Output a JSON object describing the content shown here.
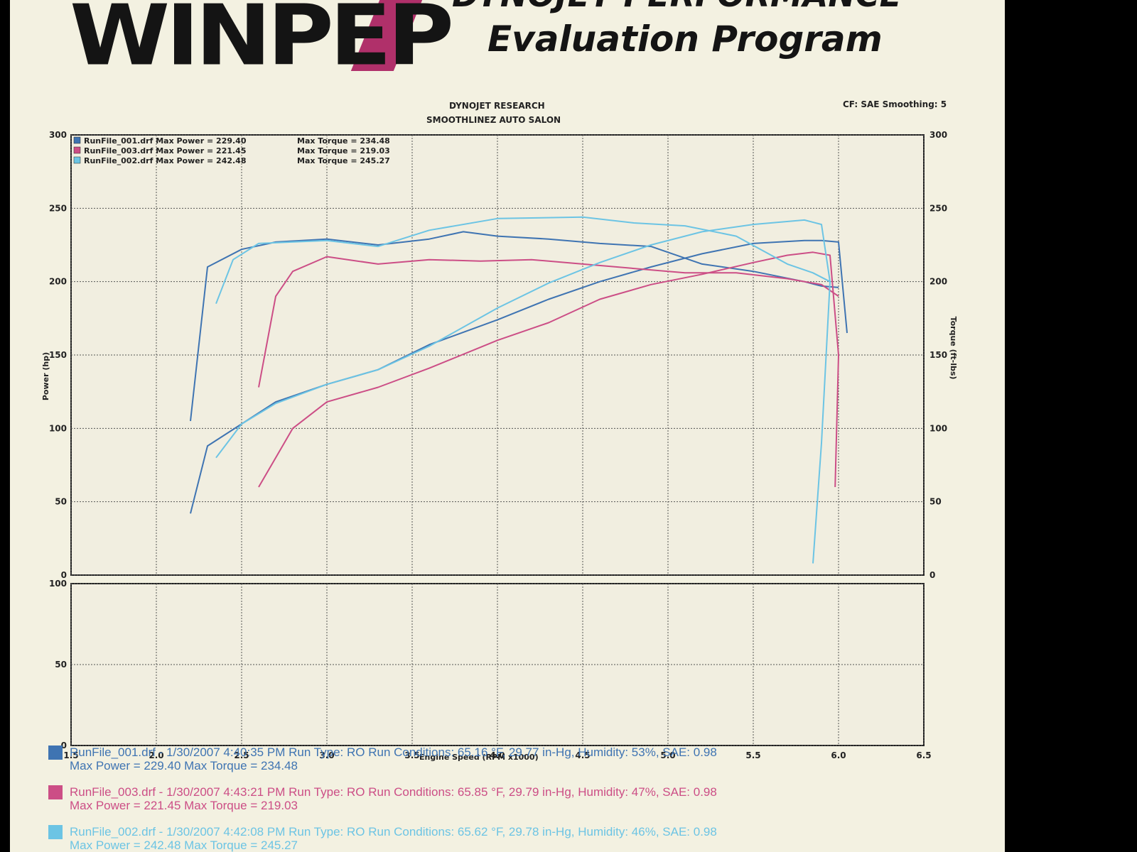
{
  "header": {
    "logo_text": "WINPEP",
    "program_line1": "DYNOJET PERFORMANCE",
    "program_line2": "Evaluation Program",
    "org_line1": "DYNOJET RESEARCH",
    "org_line2": "SMOOTHLINEZ AUTO SALON",
    "cf_smoothing": "CF: SAE  Smoothing: 5"
  },
  "colors": {
    "run001": "#3f74b2",
    "run003": "#cc4e86",
    "run002": "#6cc4e4",
    "grid": "#555555",
    "paper": "#f3f1e1"
  },
  "chart_data": {
    "type": "line",
    "xlabel": "Engine Speed (RPM x1000)",
    "ylabel_left": "Power (hp)",
    "ylabel_right": "Torque (ft-lbs)",
    "xlim": [
      1.5,
      6.5
    ],
    "ylim": [
      0,
      300
    ],
    "x_ticks": [
      "1.5",
      "2.0",
      "2.5",
      "3.0",
      "3.5",
      "4.0",
      "4.5",
      "5.0",
      "5.5",
      "6.0",
      "6.5"
    ],
    "y_ticks_left": [
      "0",
      "50",
      "100",
      "150",
      "200",
      "250",
      "300"
    ],
    "y_ticks_right": [
      "0",
      "50",
      "100",
      "150",
      "200",
      "250",
      "300"
    ],
    "lower_panel_ticks": [
      "0",
      "50",
      "100"
    ],
    "grid": true,
    "legend_entries": [
      {
        "file": "RunFile_001.drf",
        "max_power": "229.40",
        "max_torque": "234.48",
        "color_key": "run001"
      },
      {
        "file": "RunFile_003.drf",
        "max_power": "221.45",
        "max_torque": "219.03",
        "color_key": "run003"
      },
      {
        "file": "RunFile_002.drf",
        "max_power": "242.48",
        "max_torque": "245.27",
        "color_key": "run002"
      }
    ],
    "series": [
      {
        "name": "RunFile_001.drf Power",
        "color_key": "run001",
        "x": [
          2.2,
          2.3,
          2.5,
          2.7,
          3.0,
          3.3,
          3.6,
          4.0,
          4.3,
          4.6,
          4.9,
          5.2,
          5.5,
          5.8,
          5.9,
          6.0,
          6.05
        ],
        "y": [
          42,
          88,
          103,
          118,
          130,
          140,
          157,
          174,
          188,
          200,
          210,
          219,
          226,
          228,
          228,
          227,
          165
        ]
      },
      {
        "name": "RunFile_001.drf Torque",
        "color_key": "run001",
        "x": [
          2.2,
          2.3,
          2.5,
          2.7,
          3.0,
          3.3,
          3.6,
          3.8,
          4.0,
          4.3,
          4.6,
          4.9,
          5.2,
          5.5,
          5.8,
          5.9,
          6.0
        ],
        "y": [
          105,
          210,
          222,
          227,
          229,
          225,
          229,
          234,
          231,
          229,
          226,
          224,
          212,
          207,
          200,
          197,
          196
        ]
      },
      {
        "name": "RunFile_003.drf Power",
        "color_key": "run003",
        "x": [
          2.6,
          2.8,
          3.0,
          3.3,
          3.6,
          4.0,
          4.3,
          4.6,
          4.9,
          5.2,
          5.5,
          5.7,
          5.85,
          5.95,
          6.0,
          5.98
        ],
        "y": [
          60,
          100,
          118,
          128,
          141,
          160,
          172,
          188,
          198,
          205,
          213,
          218,
          220,
          218,
          150,
          60
        ]
      },
      {
        "name": "RunFile_003.drf Torque",
        "color_key": "run003",
        "x": [
          2.6,
          2.7,
          2.8,
          3.0,
          3.3,
          3.6,
          3.9,
          4.2,
          4.5,
          4.8,
          5.1,
          5.4,
          5.7,
          5.9,
          6.0
        ],
        "y": [
          128,
          190,
          207,
          217,
          212,
          215,
          214,
          215,
          212,
          209,
          206,
          206,
          202,
          198,
          190
        ]
      },
      {
        "name": "RunFile_002.drf Power",
        "color_key": "run002",
        "x": [
          2.35,
          2.5,
          2.7,
          3.0,
          3.3,
          3.6,
          4.0,
          4.3,
          4.6,
          4.9,
          5.2,
          5.5,
          5.8,
          5.9,
          5.95,
          5.9,
          5.85
        ],
        "y": [
          80,
          103,
          117,
          130,
          140,
          156,
          182,
          199,
          213,
          225,
          234,
          239,
          242,
          239,
          200,
          90,
          8
        ]
      },
      {
        "name": "RunFile_002.drf Torque",
        "color_key": "run002",
        "x": [
          2.35,
          2.45,
          2.6,
          3.0,
          3.3,
          3.6,
          4.0,
          4.5,
          4.8,
          5.1,
          5.4,
          5.7,
          5.85,
          5.95
        ],
        "y": [
          185,
          215,
          226,
          228,
          224,
          235,
          243,
          244,
          240,
          238,
          231,
          212,
          206,
          200
        ]
      }
    ]
  },
  "footer_runs": [
    {
      "line1": "RunFile_001.drf - 1/30/2007  4:40:35 PM  Run Type: RO  Run Conditions: 65.16 °F, 29.77 in-Hg,  Humidity: 53%, SAE: 0.98",
      "line2": "Max Power = 229.40  Max Torque = 234.48",
      "color_key": "run001"
    },
    {
      "line1": "RunFile_003.drf - 1/30/2007  4:43:21 PM  Run Type: RO  Run Conditions: 65.85 °F, 29.79 in-Hg,  Humidity: 47%, SAE: 0.98",
      "line2": "Max Power = 221.45  Max Torque = 219.03",
      "color_key": "run003"
    },
    {
      "line1": "RunFile_002.drf - 1/30/2007  4:42:08 PM  Run Type: RO  Run Conditions: 65.62 °F, 29.78 in-Hg,  Humidity: 46%, SAE: 0.98",
      "line2": "Max Power = 242.48  Max Torque = 245.27",
      "color_key": "run002"
    }
  ]
}
